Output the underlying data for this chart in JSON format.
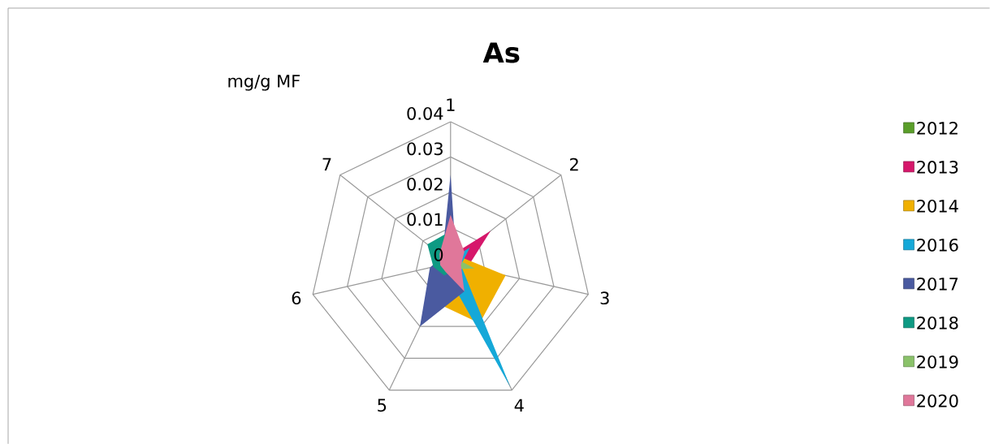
{
  "chart_data": {
    "type": "radar",
    "title": "As",
    "ylabel": "mg/g MF",
    "categories": [
      "1",
      "2",
      "3",
      "4",
      "5",
      "6",
      "7"
    ],
    "ylim": [
      0,
      0.04
    ],
    "yticks": [
      0,
      0.01,
      0.02,
      0.03,
      0.04
    ],
    "grid": true,
    "legend": "right",
    "series": [
      {
        "name": "2012",
        "color": "#5a9e2a",
        "values": [
          0.018,
          0.002,
          0.002,
          0.002,
          0.001,
          0.001,
          0.001
        ]
      },
      {
        "name": "2013",
        "color": "#d6176b",
        "values": [
          0.002,
          0.0145,
          0.005,
          0.002,
          0.002,
          0.001,
          0.001
        ]
      },
      {
        "name": "2014",
        "color": "#f0b000",
        "values": [
          0.001,
          0.003,
          0.016,
          0.019,
          0.012,
          0.001,
          0.001
        ]
      },
      {
        "name": "2016",
        "color": "#15a8d8",
        "values": [
          0.001,
          0.007,
          0.003,
          0.039,
          0.003,
          0.001,
          0.001
        ]
      },
      {
        "name": "2017",
        "color": "#4a5aa0",
        "values": [
          0.025,
          0.002,
          0.002,
          0.009,
          0.02,
          0.006,
          0.003
        ]
      },
      {
        "name": "2018",
        "color": "#0e9a83",
        "values": [
          0.009,
          0.002,
          0.002,
          0.002,
          0.004,
          0.005,
          0.0084
        ]
      },
      {
        "name": "2019",
        "color": "#8ac26a",
        "values": [
          0.004,
          0.002,
          0.007,
          0.002,
          0.001,
          0.001,
          0.001
        ]
      },
      {
        "name": "2020",
        "color": "#e0779a",
        "values": [
          0.0136,
          0.005,
          0.003,
          0.009,
          0.003,
          0.003,
          0.004
        ]
      }
    ]
  }
}
